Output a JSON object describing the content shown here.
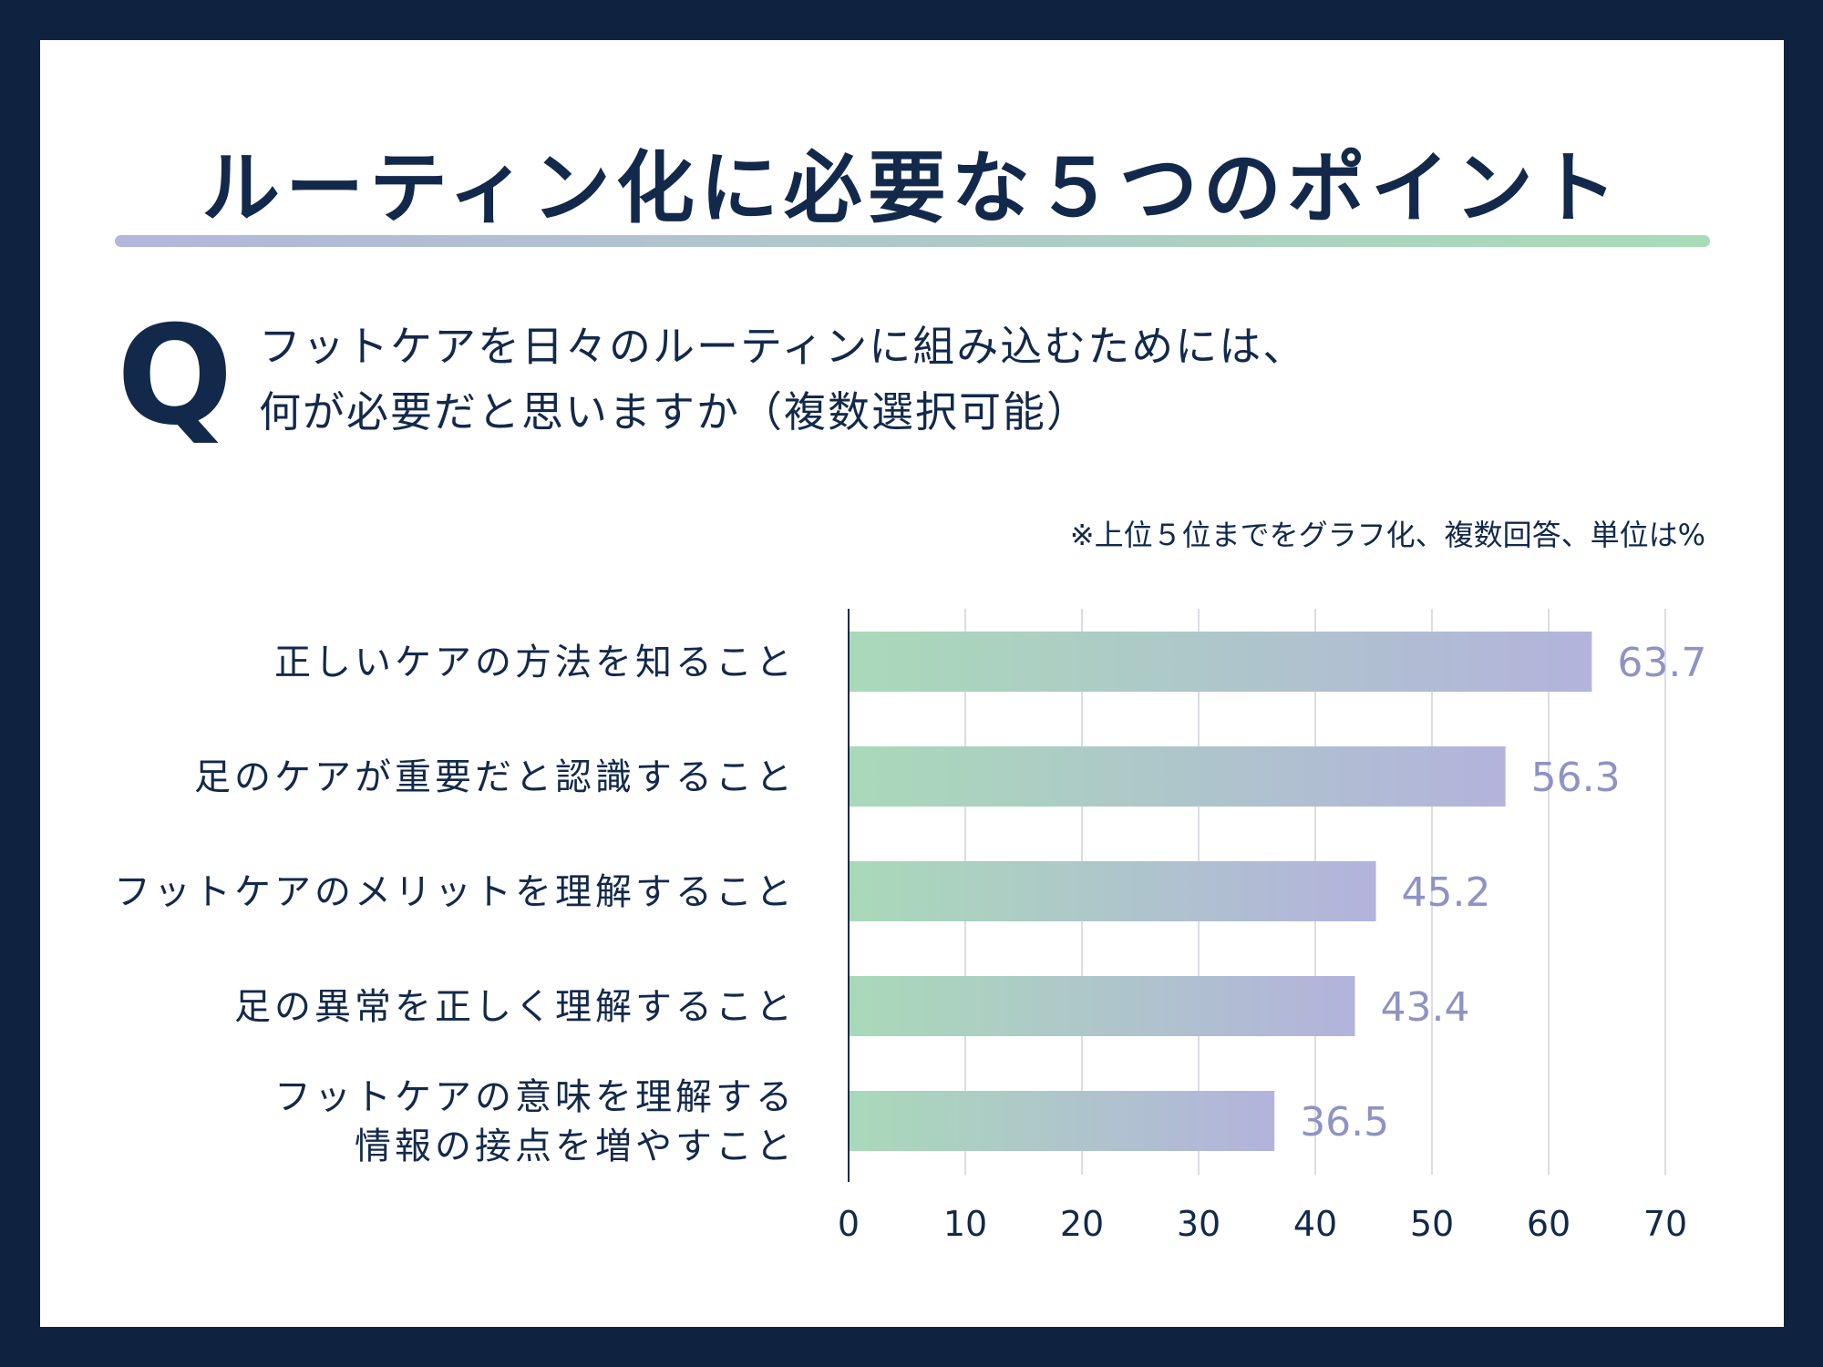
{
  "title": "ルーティン化に必要な５つのポイント",
  "question": {
    "mark": "Q",
    "line1": "フットケアを日々のルーティンに組み込むためには、",
    "line2": "何が必要だと思いますか（複数選択可能）"
  },
  "note": "※上位５位までをグラフ化、複数回答、単位は%",
  "colors": {
    "frame": "#0f2340",
    "text": "#13294b",
    "bar_start": "#a9d9b9",
    "bar_end": "#b3b3dc",
    "value_label": "#8f92c4",
    "divider_start": "#b4b6dc",
    "divider_end": "#a8dcb6"
  },
  "chart_data": {
    "type": "bar",
    "orientation": "horizontal",
    "categories": [
      [
        "正しいケアの方法を知ること"
      ],
      [
        "足のケアが重要だと認識すること"
      ],
      [
        "フットケアのメリットを理解すること"
      ],
      [
        "足の異常を正しく理解すること"
      ],
      [
        "フットケアの意味を理解する",
        "情報の接点を増やすこと"
      ]
    ],
    "values": [
      63.7,
      56.3,
      45.2,
      43.4,
      36.5
    ],
    "value_labels": [
      "63.7",
      "56.3",
      "45.2",
      "43.4",
      "36.5"
    ],
    "xlim": [
      0,
      70
    ],
    "xticks": [
      "0",
      "10",
      "20",
      "30",
      "40",
      "50",
      "60",
      "70"
    ],
    "grid": true
  }
}
